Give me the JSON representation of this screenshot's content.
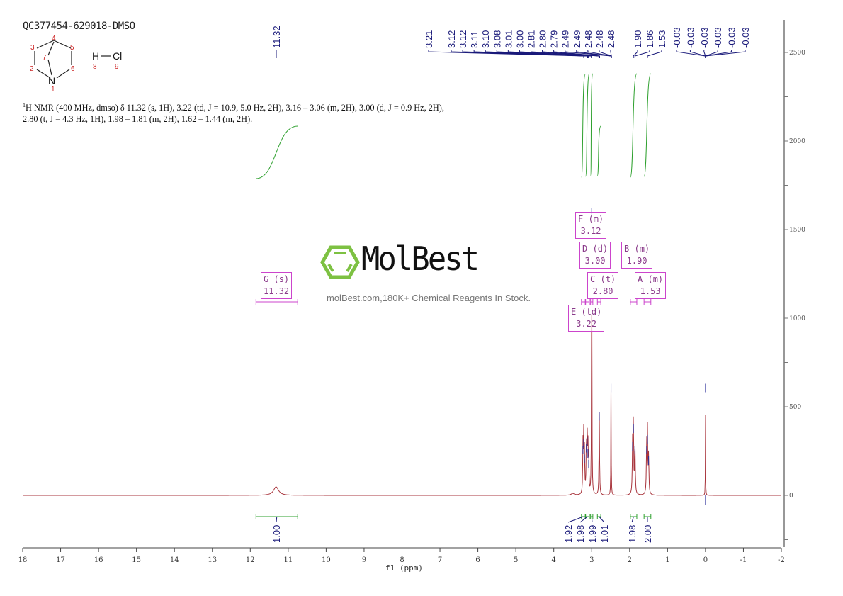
{
  "sample_id": "QC377454-629018-DMSO",
  "structure": {
    "atom_labels": [
      "1",
      "2",
      "3",
      "4",
      "5",
      "6",
      "7",
      "8",
      "9"
    ],
    "nitrogen": "N",
    "hcl_h": "H",
    "hcl_cl": "Cl"
  },
  "description": {
    "nucleus_sup": "1",
    "text": "H NMR (400 MHz, dmso) δ 11.32 (s, 1H), 3.22 (td, J = 10.9, 5.0 Hz, 2H), 3.16 – 3.06 (m, 2H), 3.00 (d, J = 0.9 Hz, 2H), 2.80 (t, J = 4.3 Hz, 1H), 1.98 – 1.81 (m, 2H), 1.62 – 1.44 (m, 2H)."
  },
  "watermark": {
    "brand": "MolBest",
    "tagline": "molBest.com,180K+ Chemical Reagents In Stock.",
    "logo_color": "#7dc142"
  },
  "chart_data": {
    "type": "line",
    "xlabel": "f1 (ppm)",
    "xlim": [
      18,
      -2
    ],
    "ylim": [
      -250,
      2750
    ],
    "x_ticks": [
      "18",
      "17",
      "16",
      "15",
      "14",
      "13",
      "12",
      "11",
      "10",
      "9",
      "8",
      "7",
      "6",
      "5",
      "4",
      "3",
      "2",
      "1",
      "0",
      "-1",
      "-2"
    ],
    "y_ticks": [
      "0",
      "500",
      "1000",
      "1500",
      "2000",
      "2500"
    ],
    "y_axis_side": "right",
    "grid": false,
    "colors": {
      "spectrum": "#a8343c",
      "spectrum_tip": "#2b2f9a",
      "integral": "#2ea02e",
      "peak_label": "#1a1a7a",
      "multiplet_box": "#cc44cc"
    },
    "peaks": [
      {
        "ppm": 11.32,
        "intensity": 48,
        "width": 0.08
      },
      {
        "ppm": 3.5,
        "intensity": 10,
        "width": 0.05
      },
      {
        "ppm": 3.23,
        "intensity": 280,
        "width": 0.008
      },
      {
        "ppm": 3.21,
        "intensity": 320,
        "width": 0.008
      },
      {
        "ppm": 3.19,
        "intensity": 230,
        "width": 0.008
      },
      {
        "ppm": 3.14,
        "intensity": 290,
        "width": 0.008
      },
      {
        "ppm": 3.12,
        "intensity": 330,
        "width": 0.008
      },
      {
        "ppm": 3.1,
        "intensity": 260,
        "width": 0.008
      },
      {
        "ppm": 3.08,
        "intensity": 200,
        "width": 0.008
      },
      {
        "ppm": 3.0,
        "intensity": 1620,
        "width": 0.006
      },
      {
        "ppm": 2.8,
        "intensity": 470,
        "width": 0.008
      },
      {
        "ppm": 2.49,
        "intensity": 630,
        "width": 0.005
      },
      {
        "ppm": 1.92,
        "intensity": 300,
        "width": 0.01
      },
      {
        "ppm": 1.9,
        "intensity": 400,
        "width": 0.008
      },
      {
        "ppm": 1.86,
        "intensity": 280,
        "width": 0.01
      },
      {
        "ppm": 1.55,
        "intensity": 280,
        "width": 0.01
      },
      {
        "ppm": 1.53,
        "intensity": 340,
        "width": 0.008
      },
      {
        "ppm": 1.5,
        "intensity": 220,
        "width": 0.01
      },
      {
        "ppm": 0.0,
        "intensity": 630,
        "width": 0.003
      }
    ],
    "peak_labels": {
      "group1": [
        "3.21",
        "3.12",
        "3.12",
        "3.11",
        "3.10",
        "3.08",
        "3.01",
        "3.00",
        "2.81",
        "2.80",
        "2.79",
        "2.49",
        "2.49",
        "2.48",
        "2.48",
        "2.48"
      ],
      "group2": [
        "1.90",
        "1.86",
        "1.53"
      ],
      "group3": [
        "-0.03",
        "-0.03",
        "-0.03",
        "-0.03",
        "-0.03",
        "-0.03"
      ],
      "single": "11.32"
    },
    "multiplets": [
      {
        "letter": "G",
        "type": "(s)",
        "shift": "11.32"
      },
      {
        "letter": "F",
        "type": "(m)",
        "shift": "3.12"
      },
      {
        "letter": "D",
        "type": "(d)",
        "shift": "3.00"
      },
      {
        "letter": "B",
        "type": "(m)",
        "shift": "1.90"
      },
      {
        "letter": "C",
        "type": "(t)",
        "shift": "2.80"
      },
      {
        "letter": "A",
        "type": "(m)",
        "shift": "1.53"
      },
      {
        "letter": "E",
        "type": "(td)",
        "shift": "3.22"
      }
    ],
    "integrals": [
      {
        "range": [
          11.85,
          10.75
        ],
        "value": "1.00"
      },
      {
        "range": [
          3.27,
          3.17
        ],
        "value": "1.92"
      },
      {
        "range": [
          3.16,
          3.06
        ],
        "value": "1.98"
      },
      {
        "range": [
          3.03,
          2.97
        ],
        "value": "1.99"
      },
      {
        "range": [
          2.85,
          2.76
        ],
        "value": "1.01"
      },
      {
        "range": [
          1.98,
          1.81
        ],
        "value": "1.98"
      },
      {
        "range": [
          1.62,
          1.44
        ],
        "value": "2.00"
      }
    ]
  }
}
